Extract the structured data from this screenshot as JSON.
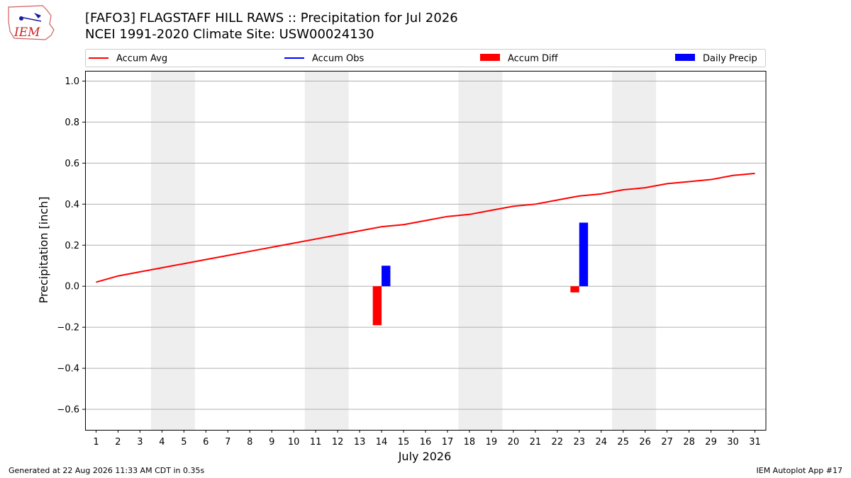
{
  "header": {
    "title_line1": "[FAFO3] FLAGSTAFF HILL RAWS :: Precipitation for Jul 2026",
    "title_line2": "NCEI 1991-2020 Climate Site: USW00024130",
    "logo_text": "IEM"
  },
  "footer": {
    "generated": "Generated at 22 Aug 2026 11:33 AM CDT in 0.35s",
    "app": "IEM Autoplot App #17"
  },
  "colors": {
    "accum_avg": "#ff0000",
    "accum_obs": "#0000ff",
    "accum_diff": "#ff0000",
    "daily_precip": "#0000ff",
    "weekend_shade": "#eeeeee",
    "grid": "#b0b0b0"
  },
  "chart_data": {
    "type": "bar",
    "xlabel": "July 2026",
    "ylabel": "Precipitation [inch]",
    "xlim": [
      0.5,
      31.5
    ],
    "ylim": [
      -0.7,
      1.05
    ],
    "yticks": [
      -0.6,
      -0.4,
      -0.2,
      0.0,
      0.2,
      0.4,
      0.6,
      0.8,
      1.0
    ],
    "ytick_labels": [
      "−0.6",
      "−0.4",
      "−0.2",
      "0.0",
      "0.2",
      "0.4",
      "0.6",
      "0.8",
      "1.0"
    ],
    "days": [
      1,
      2,
      3,
      4,
      5,
      6,
      7,
      8,
      9,
      10,
      11,
      12,
      13,
      14,
      15,
      16,
      17,
      18,
      19,
      20,
      21,
      22,
      23,
      24,
      25,
      26,
      27,
      28,
      29,
      30,
      31
    ],
    "xtick_labels": [
      "1",
      "2",
      "3",
      "4",
      "5",
      "6",
      "7",
      "8",
      "9",
      "10",
      "11",
      "12",
      "13",
      "14",
      "15",
      "16",
      "17",
      "18",
      "19",
      "20",
      "21",
      "22",
      "23",
      "24",
      "25",
      "26",
      "27",
      "28",
      "29",
      "30",
      "31"
    ],
    "weekend_days": [
      4,
      5,
      11,
      12,
      18,
      19,
      25,
      26
    ],
    "grid": true,
    "legend_position": "top",
    "legend": [
      {
        "name": "Accum Avg",
        "kind": "line",
        "color": "#ff0000"
      },
      {
        "name": "Accum Obs",
        "kind": "line",
        "color": "#0000ff"
      },
      {
        "name": "Accum Diff",
        "kind": "bar",
        "color": "#ff0000"
      },
      {
        "name": "Daily Precip",
        "kind": "bar",
        "color": "#0000ff"
      }
    ],
    "series": [
      {
        "name": "Accum Avg",
        "kind": "line",
        "values": [
          0.02,
          0.05,
          0.07,
          0.09,
          0.11,
          0.13,
          0.15,
          0.17,
          0.19,
          0.21,
          0.23,
          0.25,
          0.27,
          0.29,
          0.3,
          0.32,
          0.34,
          0.35,
          0.37,
          0.39,
          0.4,
          0.42,
          0.44,
          0.45,
          0.47,
          0.48,
          0.5,
          0.51,
          0.52,
          0.54,
          0.55
        ]
      },
      {
        "name": "Accum Diff",
        "kind": "bar",
        "points": [
          {
            "x": 14,
            "y": -0.19
          },
          {
            "x": 23,
            "y": -0.03
          }
        ]
      },
      {
        "name": "Daily Precip",
        "kind": "bar",
        "points": [
          {
            "x": 14,
            "y": 0.1
          },
          {
            "x": 23,
            "y": 0.31
          }
        ]
      }
    ]
  }
}
